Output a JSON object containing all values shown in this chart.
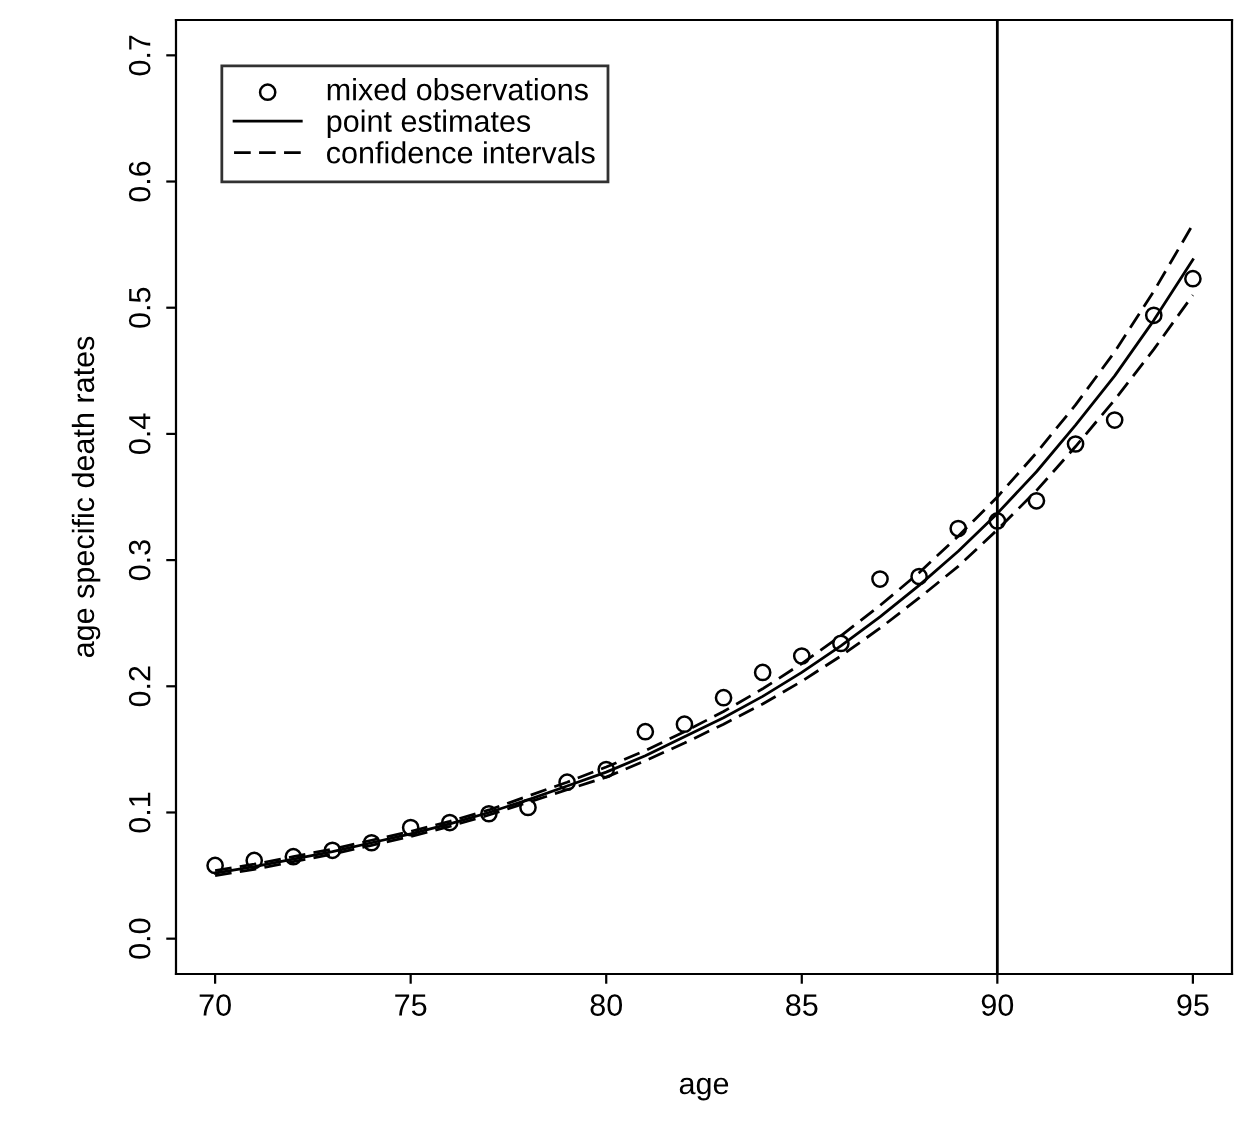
{
  "chart_data": {
    "type": "line",
    "xlabel": "age",
    "ylabel": "age specific death rates",
    "x": [
      70,
      71,
      72,
      73,
      74,
      75,
      76,
      77,
      78,
      79,
      80,
      81,
      82,
      83,
      84,
      85,
      86,
      87,
      88,
      89,
      90,
      91,
      92,
      93,
      94,
      95
    ],
    "series": [
      {
        "name": "mixed observations",
        "type": "scatter",
        "marker": "circle",
        "color": "#000000",
        "values": [
          0.058,
          0.062,
          0.065,
          0.07,
          0.076,
          0.088,
          0.092,
          0.099,
          0.104,
          0.124,
          0.134,
          0.164,
          0.17,
          0.191,
          0.211,
          0.224,
          0.234,
          0.285,
          0.287,
          0.325,
          0.331,
          0.347,
          0.392,
          0.411,
          0.494,
          0.523
        ]
      },
      {
        "name": "point estimates",
        "line_style": "solid",
        "color": "#000000",
        "values": [
          0.052,
          0.057,
          0.063,
          0.069,
          0.076,
          0.083,
          0.091,
          0.1,
          0.11,
          0.121,
          0.132,
          0.145,
          0.16,
          0.175,
          0.192,
          0.211,
          0.232,
          0.255,
          0.28,
          0.307,
          0.337,
          0.37,
          0.407,
          0.446,
          0.49,
          0.538
        ]
      },
      {
        "name": "confidence intervals",
        "line_style": "dashed",
        "color": "#000000",
        "values": [
          0.054,
          0.059,
          0.065,
          0.071,
          0.078,
          0.085,
          0.093,
          0.102,
          0.113,
          0.124,
          0.136,
          0.149,
          0.164,
          0.18,
          0.198,
          0.218,
          0.24,
          0.264,
          0.29,
          0.319,
          0.35,
          0.385,
          0.423,
          0.465,
          0.513,
          0.566
        ]
      },
      {
        "line_style": "dashed",
        "color": "#000000",
        "values": [
          0.05,
          0.055,
          0.061,
          0.067,
          0.074,
          0.081,
          0.089,
          0.098,
          0.108,
          0.118,
          0.128,
          0.141,
          0.155,
          0.17,
          0.186,
          0.204,
          0.224,
          0.246,
          0.27,
          0.295,
          0.324,
          0.355,
          0.39,
          0.427,
          0.467,
          0.51
        ]
      }
    ],
    "xlim": [
      69,
      96
    ],
    "ylim": [
      -0.028,
      0.728
    ],
    "xticks": [
      70,
      75,
      80,
      85,
      90,
      95
    ],
    "yticks": [
      {
        "value": 0,
        "label": "0.0"
      },
      0.1,
      0.2,
      0.3,
      0.4,
      0.5,
      0.6,
      0.7
    ],
    "ref_lines": [
      {
        "axis": "x",
        "value": 90,
        "color": "#000000",
        "line_style": "solid"
      }
    ],
    "grid": false,
    "legend": "top left"
  }
}
